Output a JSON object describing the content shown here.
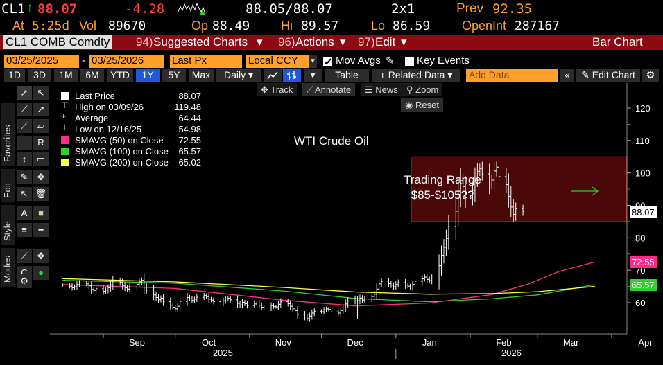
{
  "quote": {
    "ticker": "CL1",
    "last": "88.07",
    "change": "-4.28",
    "bid_ask": "88.05/88.07",
    "size": "2x1",
    "prev_label": "Prev",
    "prev": "92.35",
    "at_label": "At",
    "time": "5:25d",
    "vol_label": "Vol",
    "vol": "89670",
    "op_label": "Op",
    "open": "88.49",
    "hi_label": "Hi",
    "high": "89.57",
    "lo_label": "Lo",
    "low": "86.59",
    "oi_label": "OpenInt",
    "oi": "287167",
    "up_arrow": "↑"
  },
  "menu": {
    "security": "CL1 COMB Comdty",
    "suggested_num": "94)",
    "suggested": "Suggested Charts",
    "actions_num": "96)",
    "actions": "Actions",
    "edit_num": "97)",
    "edit": "Edit",
    "chart_type": "Bar Chart"
  },
  "controls": {
    "start_date": "03/25/2025",
    "dash": "-",
    "end_date": "03/25/2026",
    "field": "Last Px",
    "currency": "Local CCY",
    "mov_avgs": "Mov Avgs",
    "key_events": "Key Events"
  },
  "toolbar": {
    "periods": [
      "1D",
      "3D",
      "1M",
      "6M",
      "YTD",
      "1Y",
      "5Y",
      "Max"
    ],
    "selected_period": "1Y",
    "frequency": "Daily",
    "table": "Table",
    "related": "+ Related Data",
    "add_data_placeholder": "Add Data",
    "collapse": "«",
    "edit_chart": "Edit Chart"
  },
  "palette_tabs": {
    "favorites": "Favorites",
    "edit": "Edit",
    "style": "Style",
    "modes": "Modes"
  },
  "floating": {
    "track": "Track",
    "annotate": "Annotate",
    "news": "News",
    "zoom": "Zoom",
    "reset": "Reset"
  },
  "legend": {
    "last_price_label": "Last Price",
    "last_price": "88.07",
    "high_label": "High on 03/09/26",
    "high": "119.48",
    "average_label": "Average",
    "average": "64.44",
    "low_label": "Low on 12/16/25",
    "low": "54.98",
    "sma50_label": "SMAVG (50)  on Close",
    "sma50": "72.55",
    "sma100_label": "SMAVG (100)  on Close",
    "sma100": "65.57",
    "sma200_label": "SMAVG (200)  on Close",
    "sma200": "65.02"
  },
  "annotations": {
    "title": "WTI Crude Oil",
    "range_line1": "Trading Range",
    "range_line2": "$85-$105??"
  },
  "price_tags": {
    "last": "88.07",
    "sma50": "72.55",
    "sma100": "65.57"
  },
  "colors": {
    "bars": "#ffffff",
    "sma50": "#ff2d8a",
    "sma100": "#2fd12f",
    "sma200": "#ffff3c",
    "range_box_fill": "#4a0808",
    "range_box_edge": "#d01818",
    "arrow": "#2fd12f",
    "last_tag": "#ffffff"
  },
  "chart_data": {
    "type": "bar",
    "subtype": "ohlc",
    "title": "WTI Crude Oil",
    "x_ticks": [
      "Sep",
      "Oct",
      "Nov",
      "Dec",
      "Jan",
      "Feb",
      "Mar",
      "Apr"
    ],
    "x_years": [
      "2025",
      "2026"
    ],
    "y_ticks": [
      60,
      70,
      80,
      90,
      100,
      110,
      120
    ],
    "ylim": [
      50,
      124
    ],
    "xlim": [
      "2025-08-14",
      "2026-04-14"
    ],
    "grid": false,
    "trading_range": [
      85,
      105
    ],
    "price_daily": {
      "start": "2025-08-15",
      "close": [
        65.4,
        65.1,
        64.6,
        64.9,
        65.6,
        66.1,
        65.8,
        65.2,
        64.1,
        63.8,
        64.3,
        63.5,
        63.9,
        64.6,
        65.5,
        66.8,
        66.2,
        65.3,
        64.6,
        64.2,
        64.9,
        65.7,
        66.4,
        66.9,
        64.8,
        63.9,
        62.4,
        61.6,
        60.9,
        61.4,
        60.3,
        59.2,
        58.6,
        58.1,
        58.9,
        60.4,
        61.6,
        61.2,
        60.7,
        61.1,
        61.7,
        62.2,
        61.9,
        61.1,
        60.8,
        60.3,
        59.9,
        60.6,
        61.2,
        61.4,
        60.9,
        59.8,
        59.3,
        60.1,
        59.7,
        59.1,
        59.6,
        59.9,
        59.2,
        58.6,
        58.4,
        59.1,
        58.8,
        58.7,
        59.5,
        60.3,
        59.7,
        58.9,
        58.1,
        57.6,
        56.4,
        55.6,
        55.1,
        55.9,
        56.8,
        57.4,
        57.2,
        57.8,
        58.1,
        57.9,
        57.2,
        56.8,
        57.6,
        58.4,
        59.6,
        60.5,
        61.2,
        60.6,
        61.4,
        60.8,
        61.2,
        61.9,
        62.6,
        64.2,
        65.8,
        66.6,
        65.9,
        65.4,
        64.9,
        65.6,
        66.2,
        65.4,
        65.1,
        64.8,
        65.6,
        66.6,
        67.4,
        67.9,
        67.2,
        66.8,
        67.6,
        71.4,
        74.6,
        77.1,
        79.8,
        83.5,
        88.2,
        93.4,
        97.6,
        95.8,
        92.4,
        94.6,
        98.2,
        100.5,
        101.4,
        99.7,
        96.6,
        97.8,
        100.6,
        101.8,
        98.9,
        96.4,
        92.8,
        89.5,
        87.2,
        88.9,
        88.07
      ],
      "high_max": {
        "date": "2026-03-09",
        "value": 119.48
      },
      "low_min": {
        "date": "2025-12-16",
        "value": 54.98
      }
    },
    "series": [
      {
        "name": "SMAVG (50) on Close",
        "last": 72.55,
        "points": [
          [
            "2025-08-15",
            65.6
          ],
          [
            "2025-10-01",
            64.4
          ],
          [
            "2025-11-15",
            60.8
          ],
          [
            "2025-12-15",
            59.0
          ],
          [
            "2026-01-15",
            59.9
          ],
          [
            "2026-02-10",
            62.5
          ],
          [
            "2026-02-25",
            65.7
          ],
          [
            "2026-03-10",
            69.6
          ],
          [
            "2026-03-25",
            72.55
          ]
        ]
      },
      {
        "name": "SMAVG (100) on Close",
        "last": 65.57,
        "points": [
          [
            "2025-08-15",
            66.9
          ],
          [
            "2025-10-01",
            66.0
          ],
          [
            "2025-11-15",
            63.6
          ],
          [
            "2025-12-15",
            61.3
          ],
          [
            "2026-01-15",
            60.3
          ],
          [
            "2026-02-10",
            61.2
          ],
          [
            "2026-03-01",
            62.4
          ],
          [
            "2026-03-25",
            65.57
          ]
        ]
      },
      {
        "name": "SMAVG (200) on Close",
        "last": 65.02,
        "points": [
          [
            "2025-08-15",
            67.4
          ],
          [
            "2025-10-01",
            66.4
          ],
          [
            "2025-11-15",
            64.7
          ],
          [
            "2025-12-15",
            63.3
          ],
          [
            "2026-01-15",
            62.6
          ],
          [
            "2026-02-10",
            62.8
          ],
          [
            "2026-03-01",
            63.4
          ],
          [
            "2026-03-25",
            65.02
          ]
        ]
      }
    ]
  }
}
